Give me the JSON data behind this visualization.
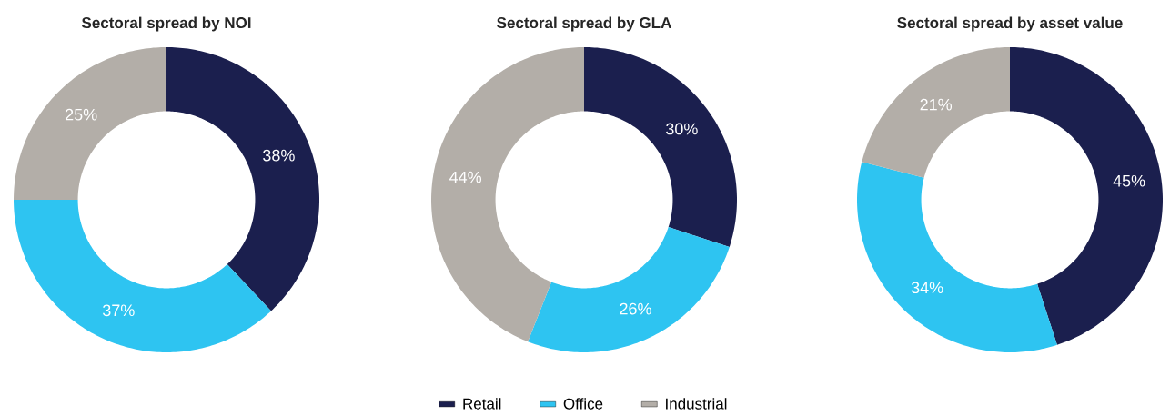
{
  "chart_data": [
    {
      "type": "donut",
      "title": "Sectoral spread by NOI",
      "values": [
        38,
        37,
        25
      ],
      "value_labels": [
        "38%",
        "37%",
        "25%"
      ],
      "colors": [
        "#1b1f4e",
        "#2ec4f1",
        "#b3aea8"
      ]
    },
    {
      "type": "donut",
      "title": "Sectoral spread by GLA",
      "categories": [
        "Retail",
        "Office",
        "Industrial"
      ],
      "values": [
        30,
        26,
        44
      ],
      "value_labels": [
        "30%",
        "26%",
        "44%"
      ],
      "colors": [
        "#1b1f4e",
        "#2ec4f1",
        "#b3aea8"
      ],
      "legend": "bottom"
    },
    {
      "type": "donut",
      "title": "Sectoral spread by asset value",
      "values": [
        45,
        34,
        21
      ],
      "value_labels": [
        "45%",
        "34%",
        "21%"
      ],
      "colors": [
        "#1b1f4e",
        "#2ec4f1",
        "#b3aea8"
      ]
    }
  ]
}
